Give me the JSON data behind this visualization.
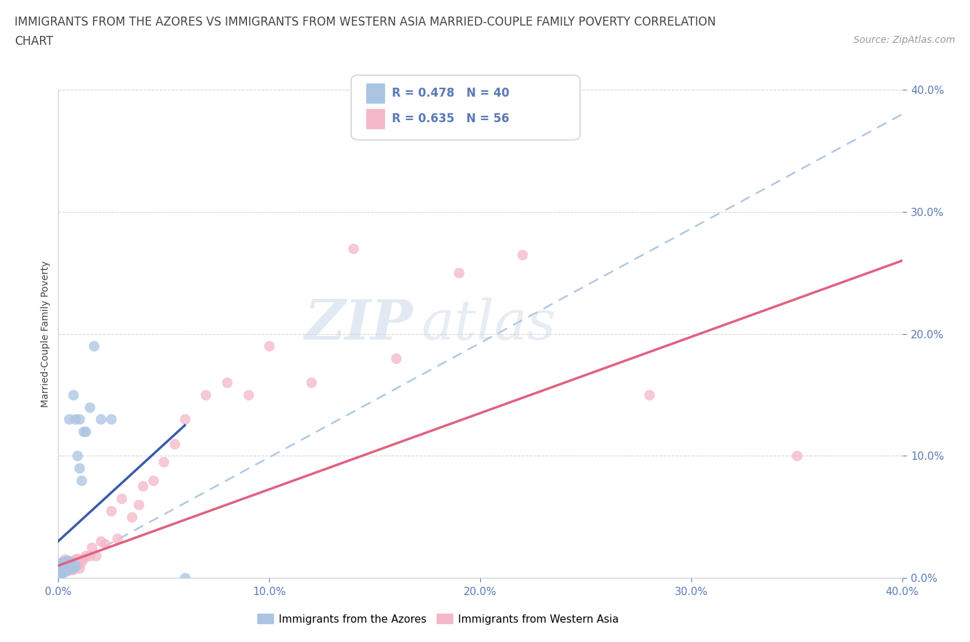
{
  "title_line1": "IMMIGRANTS FROM THE AZORES VS IMMIGRANTS FROM WESTERN ASIA MARRIED-COUPLE FAMILY POVERTY CORRELATION",
  "title_line2": "CHART",
  "source": "Source: ZipAtlas.com",
  "ylabel": "Married-Couple Family Poverty",
  "xlim": [
    0.0,
    0.4
  ],
  "ylim": [
    0.0,
    0.4
  ],
  "watermark_zip": "ZIP",
  "watermark_atlas": "atlas",
  "legend_r1": "R = 0.478",
  "legend_n1": "N = 40",
  "legend_r2": "R = 0.635",
  "legend_n2": "N = 56",
  "azores_color": "#aac4e2",
  "azores_edge": "#aac4e2",
  "western_asia_color": "#f4b8c8",
  "western_asia_edge": "#f4b8c8",
  "trendline1_color": "#3a5ca8",
  "trendline2_color": "#e06080",
  "trendline_dash_color": "#b0c8e0",
  "grid_color": "#cccccc",
  "tick_color": "#5a7ab5",
  "title_color": "#444444",
  "source_color": "#999999",
  "legend_bottom_label1": "Immigrants from the Azores",
  "legend_bottom_label2": "Immigrants from Western Asia",
  "azores_x": [
    0.0,
    0.0,
    0.0,
    0.001,
    0.001,
    0.001,
    0.001,
    0.001,
    0.002,
    0.002,
    0.002,
    0.002,
    0.002,
    0.003,
    0.003,
    0.003,
    0.003,
    0.004,
    0.004,
    0.004,
    0.005,
    0.005,
    0.005,
    0.006,
    0.006,
    0.007,
    0.007,
    0.008,
    0.008,
    0.009,
    0.01,
    0.01,
    0.011,
    0.012,
    0.013,
    0.015,
    0.017,
    0.02,
    0.025,
    0.06
  ],
  "azores_y": [
    0.005,
    0.008,
    0.01,
    0.003,
    0.005,
    0.007,
    0.009,
    0.012,
    0.004,
    0.006,
    0.008,
    0.01,
    0.013,
    0.005,
    0.007,
    0.009,
    0.012,
    0.006,
    0.01,
    0.014,
    0.008,
    0.011,
    0.13,
    0.009,
    0.013,
    0.008,
    0.15,
    0.01,
    0.13,
    0.1,
    0.09,
    0.13,
    0.08,
    0.12,
    0.12,
    0.14,
    0.19,
    0.13,
    0.13,
    0.0
  ],
  "western_asia_x": [
    0.0,
    0.0,
    0.0,
    0.001,
    0.001,
    0.001,
    0.002,
    0.002,
    0.002,
    0.003,
    0.003,
    0.003,
    0.004,
    0.004,
    0.005,
    0.005,
    0.005,
    0.006,
    0.006,
    0.007,
    0.007,
    0.008,
    0.008,
    0.009,
    0.009,
    0.01,
    0.01,
    0.011,
    0.012,
    0.013,
    0.015,
    0.016,
    0.018,
    0.02,
    0.022,
    0.025,
    0.028,
    0.03,
    0.035,
    0.038,
    0.04,
    0.045,
    0.05,
    0.055,
    0.06,
    0.07,
    0.08,
    0.09,
    0.1,
    0.12,
    0.14,
    0.16,
    0.19,
    0.22,
    0.28,
    0.35
  ],
  "western_asia_y": [
    0.005,
    0.008,
    0.012,
    0.004,
    0.007,
    0.01,
    0.005,
    0.009,
    0.013,
    0.006,
    0.01,
    0.015,
    0.007,
    0.011,
    0.006,
    0.009,
    0.014,
    0.008,
    0.012,
    0.007,
    0.013,
    0.009,
    0.015,
    0.01,
    0.016,
    0.008,
    0.014,
    0.013,
    0.016,
    0.018,
    0.018,
    0.025,
    0.018,
    0.03,
    0.028,
    0.055,
    0.032,
    0.065,
    0.05,
    0.06,
    0.075,
    0.08,
    0.095,
    0.11,
    0.13,
    0.15,
    0.16,
    0.15,
    0.19,
    0.16,
    0.27,
    0.18,
    0.25,
    0.265,
    0.15,
    0.1
  ],
  "az_trend_x": [
    0.0,
    0.06
  ],
  "az_trend_y": [
    0.03,
    0.125
  ],
  "wa_trend_x": [
    0.0,
    0.4
  ],
  "wa_trend_y": [
    0.01,
    0.26
  ],
  "dash_trend_x": [
    0.0,
    0.4
  ],
  "dash_trend_y": [
    0.005,
    0.38
  ]
}
